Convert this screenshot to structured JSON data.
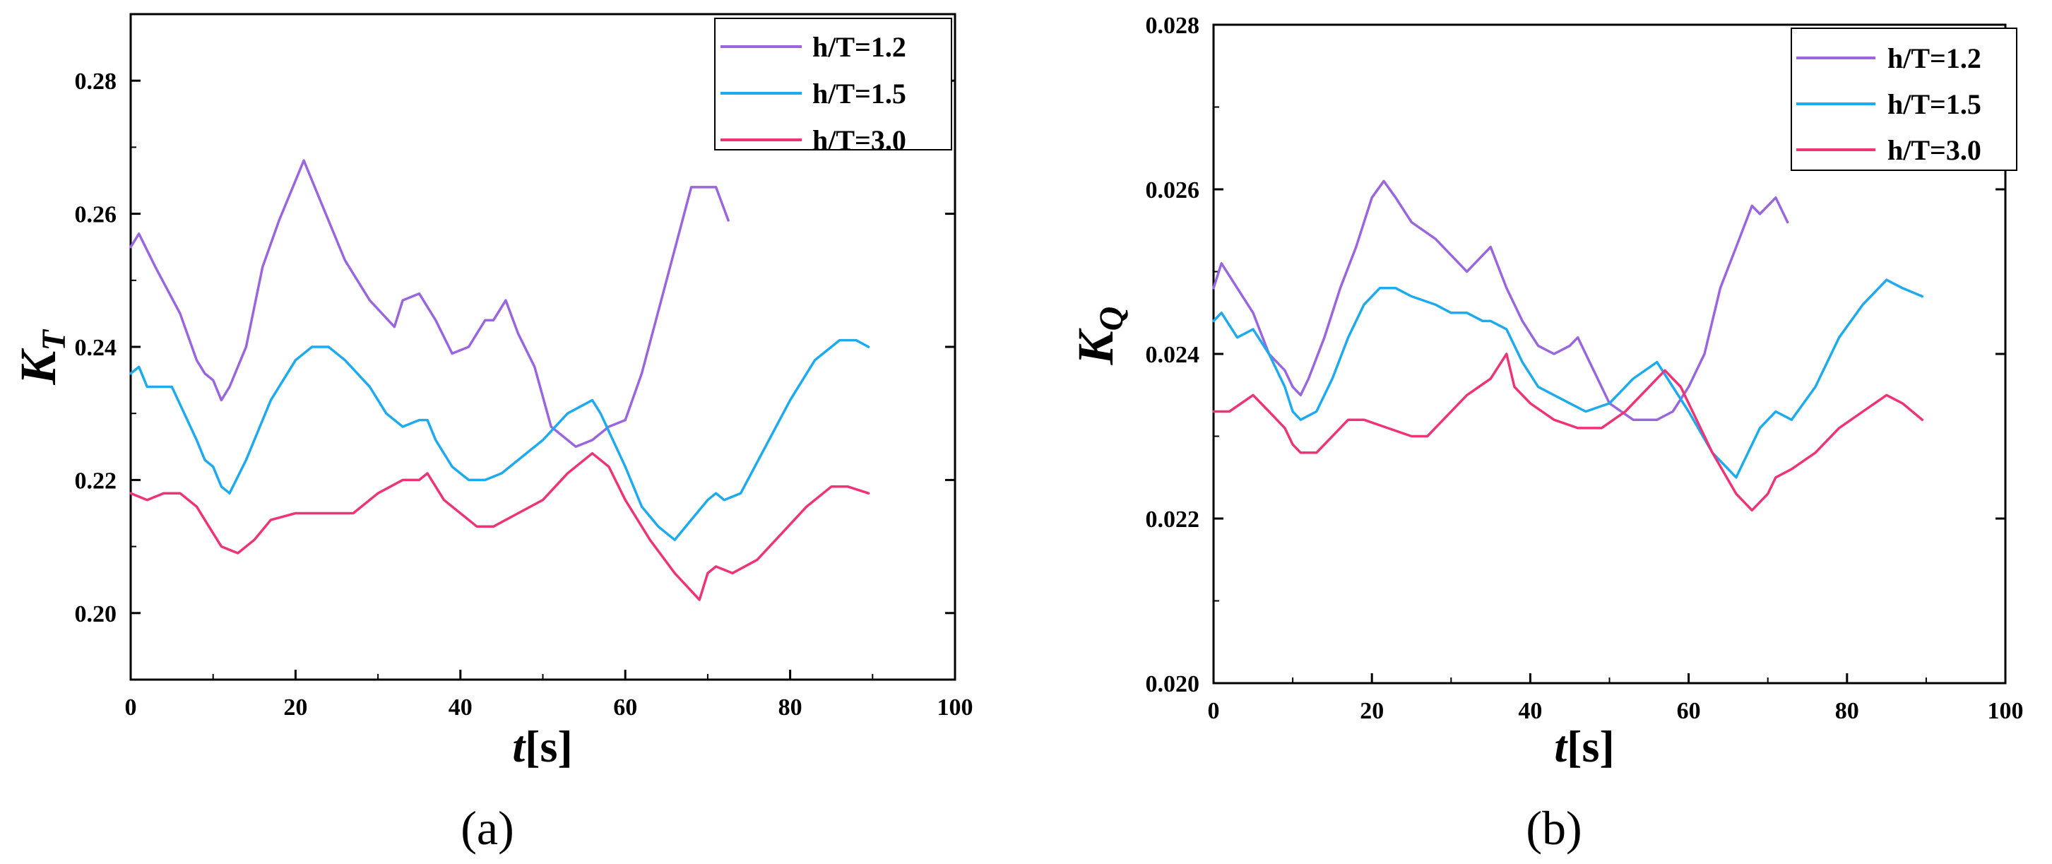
{
  "chart_data": [
    {
      "type": "line",
      "panel_label": "(a)",
      "xlabel_var": "t",
      "xlabel_unit": "[s]",
      "ylabel_main": "K",
      "ylabel_sub": "T",
      "xlim": [
        0,
        100
      ],
      "ylim": [
        0.19,
        0.29
      ],
      "xticks": [
        0,
        20,
        40,
        60,
        80,
        100
      ],
      "xtick_labels": [
        "0",
        "20",
        "40",
        "60",
        "80",
        "100"
      ],
      "yticks": [
        0.2,
        0.22,
        0.24,
        0.26,
        0.28
      ],
      "ytick_labels": [
        "0.20",
        "0.22",
        "0.24",
        "0.26",
        "0.28"
      ],
      "legend_position": "top-right",
      "series": [
        {
          "name": "h/T=1.2",
          "color": "#9966dd",
          "x": [
            0,
            1,
            3,
            6,
            8,
            9,
            10,
            11,
            12,
            14,
            16,
            18,
            21,
            23,
            26,
            29,
            32,
            33,
            35,
            37,
            39,
            41,
            43,
            44,
            45.5,
            47,
            49,
            51,
            54,
            56,
            58,
            60,
            62,
            65,
            68,
            70,
            71,
            72.5
          ],
          "y": [
            0.255,
            0.257,
            0.252,
            0.245,
            0.238,
            0.236,
            0.235,
            0.232,
            0.234,
            0.24,
            0.252,
            0.259,
            0.268,
            0.262,
            0.253,
            0.247,
            0.243,
            0.247,
            0.248,
            0.244,
            0.239,
            0.24,
            0.244,
            0.244,
            0.247,
            0.242,
            0.237,
            0.228,
            0.225,
            0.226,
            0.228,
            0.229,
            0.236,
            0.25,
            0.264,
            0.264,
            0.264,
            0.259
          ]
        },
        {
          "name": "h/T=1.5",
          "color": "#1eaaee",
          "x": [
            0,
            1,
            2,
            5,
            8,
            9,
            10,
            11,
            12,
            14,
            17,
            20,
            22,
            24,
            26,
            29,
            31,
            33,
            35,
            36,
            37,
            39,
            41,
            43,
            45,
            47,
            50,
            53,
            56,
            57,
            60,
            62,
            64,
            66,
            68,
            70,
            71,
            72,
            74,
            77,
            80,
            83,
            86,
            88,
            89.5
          ],
          "y": [
            0.236,
            0.237,
            0.234,
            0.234,
            0.226,
            0.223,
            0.222,
            0.219,
            0.218,
            0.223,
            0.232,
            0.238,
            0.24,
            0.24,
            0.238,
            0.234,
            0.23,
            0.228,
            0.229,
            0.229,
            0.226,
            0.222,
            0.22,
            0.22,
            0.221,
            0.223,
            0.226,
            0.23,
            0.232,
            0.23,
            0.222,
            0.216,
            0.213,
            0.211,
            0.214,
            0.217,
            0.218,
            0.217,
            0.218,
            0.225,
            0.232,
            0.238,
            0.241,
            0.241,
            0.24
          ]
        },
        {
          "name": "h/T=3.0",
          "color": "#ee3377",
          "x": [
            0,
            2,
            4,
            6,
            8,
            9,
            10,
            11,
            13,
            15,
            17,
            20,
            23,
            27,
            30,
            33,
            35,
            36,
            37,
            38,
            40,
            42,
            44,
            47,
            50,
            53,
            56,
            58,
            60,
            63,
            66,
            69,
            70,
            71,
            73,
            76,
            79,
            82,
            85,
            87,
            89.5
          ],
          "y": [
            0.218,
            0.217,
            0.218,
            0.218,
            0.216,
            0.214,
            0.212,
            0.21,
            0.209,
            0.211,
            0.214,
            0.215,
            0.215,
            0.215,
            0.218,
            0.22,
            0.22,
            0.221,
            0.219,
            0.217,
            0.215,
            0.213,
            0.213,
            0.215,
            0.217,
            0.221,
            0.224,
            0.222,
            0.217,
            0.211,
            0.206,
            0.202,
            0.206,
            0.207,
            0.206,
            0.208,
            0.212,
            0.216,
            0.219,
            0.219,
            0.218
          ]
        }
      ]
    },
    {
      "type": "line",
      "panel_label": "(b)",
      "xlabel_var": "t",
      "xlabel_unit": "[s]",
      "ylabel_main": "K",
      "ylabel_sub": "Q",
      "xlim": [
        0,
        100
      ],
      "ylim": [
        0.02,
        0.028
      ],
      "xticks": [
        0,
        20,
        40,
        60,
        80,
        100
      ],
      "xtick_labels": [
        "0",
        "20",
        "40",
        "60",
        "80",
        "100"
      ],
      "yticks": [
        0.02,
        0.022,
        0.024,
        0.026,
        0.028
      ],
      "ytick_labels": [
        "0.020",
        "0.022",
        "0.024",
        "0.026",
        "0.028"
      ],
      "legend_position": "top-right",
      "series": [
        {
          "name": "h/T=1.2",
          "color": "#9966dd",
          "x": [
            0,
            1,
            3,
            5,
            7,
            9,
            10,
            11,
            12,
            14,
            16,
            18,
            20,
            21.5,
            23,
            25,
            28,
            30,
            32,
            34,
            35,
            37,
            39,
            41,
            43,
            45,
            46,
            48,
            50,
            53,
            56,
            58,
            60,
            62,
            64,
            66,
            68,
            69,
            70,
            71,
            72.5
          ],
          "y": [
            0.0248,
            0.0251,
            0.0248,
            0.0245,
            0.024,
            0.0238,
            0.0236,
            0.0235,
            0.0237,
            0.0242,
            0.0248,
            0.0253,
            0.0259,
            0.0261,
            0.0259,
            0.0256,
            0.0254,
            0.0252,
            0.025,
            0.0252,
            0.0253,
            0.0248,
            0.0244,
            0.0241,
            0.024,
            0.0241,
            0.0242,
            0.0238,
            0.0234,
            0.0232,
            0.0232,
            0.0233,
            0.0236,
            0.024,
            0.0248,
            0.0253,
            0.0258,
            0.0257,
            0.0258,
            0.0259,
            0.0256
          ]
        },
        {
          "name": "h/T=1.5",
          "color": "#1eaaee",
          "x": [
            0,
            1,
            3,
            5,
            7,
            9,
            10,
            11,
            13,
            15,
            17,
            19,
            21,
            23,
            25,
            28,
            30,
            32,
            34,
            35,
            37,
            39,
            41,
            43,
            45,
            47,
            50,
            53,
            56,
            58,
            60,
            63,
            65,
            66,
            67,
            69,
            70,
            71,
            73,
            76,
            79,
            82,
            85,
            87,
            89.5
          ],
          "y": [
            0.0244,
            0.0245,
            0.0242,
            0.0243,
            0.024,
            0.0236,
            0.0233,
            0.0232,
            0.0233,
            0.0237,
            0.0242,
            0.0246,
            0.0248,
            0.0248,
            0.0247,
            0.0246,
            0.0245,
            0.0245,
            0.0244,
            0.0244,
            0.0243,
            0.0239,
            0.0236,
            0.0235,
            0.0234,
            0.0233,
            0.0234,
            0.0237,
            0.0239,
            0.0236,
            0.0233,
            0.0228,
            0.0226,
            0.0225,
            0.0227,
            0.0231,
            0.0232,
            0.0233,
            0.0232,
            0.0236,
            0.0242,
            0.0246,
            0.0249,
            0.0248,
            0.0247
          ]
        },
        {
          "name": "h/T=3.0",
          "color": "#ee3377",
          "x": [
            0,
            2,
            5,
            7,
            9,
            10,
            11,
            13,
            15,
            17,
            19,
            22,
            25,
            27,
            29,
            32,
            35,
            37,
            38,
            40,
            43,
            46,
            49,
            52,
            55,
            57,
            59,
            61,
            63,
            66,
            68,
            69,
            70,
            71,
            73,
            76,
            79,
            82,
            85,
            87,
            89.5
          ],
          "y": [
            0.0233,
            0.0233,
            0.0235,
            0.0233,
            0.0231,
            0.0229,
            0.0228,
            0.0228,
            0.023,
            0.0232,
            0.0232,
            0.0231,
            0.023,
            0.023,
            0.0232,
            0.0235,
            0.0237,
            0.024,
            0.0236,
            0.0234,
            0.0232,
            0.0231,
            0.0231,
            0.0233,
            0.0236,
            0.0238,
            0.0236,
            0.0232,
            0.0228,
            0.0223,
            0.0221,
            0.0222,
            0.0223,
            0.0225,
            0.0226,
            0.0228,
            0.0231,
            0.0233,
            0.0235,
            0.0234,
            0.0232
          ]
        }
      ]
    }
  ]
}
